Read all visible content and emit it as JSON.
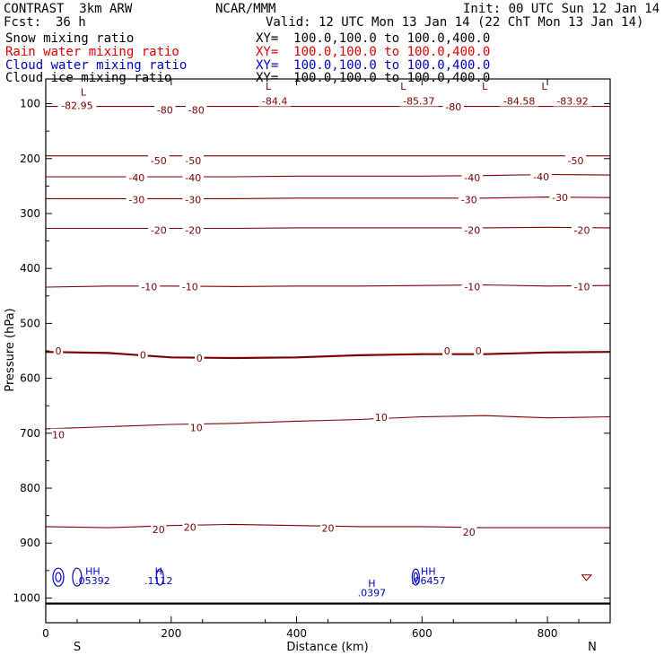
{
  "header": {
    "title": "CONTRAST  3km ARW",
    "center": "NCAR/MMM",
    "init": "Init: 00 UTC Sun 12 Jan 14",
    "fcst_label": "Fcst:",
    "fcst_value": "36 h",
    "valid": "Valid: 12 UTC Mon 13 Jan 14 (22 ChT Mon 13 Jan 14)"
  },
  "fields": [
    {
      "name": "Snow mixing ratio",
      "xy": "XY=  100.0,100.0 to 100.0,400.0",
      "color": "#000000"
    },
    {
      "name": "Rain water mixing ratio",
      "xy": "XY=  100.0,100.0 to 100.0,400.0",
      "color": "#e00000"
    },
    {
      "name": "Cloud water mixing ratio",
      "xy": "XY=  100.0,100.0 to 100.0,400.0",
      "color": "#0000c8"
    },
    {
      "name": "Cloud ice mixing ratio",
      "xy": "XY=  100.0,100.0 to 100.0,400.0",
      "color": "#000000"
    }
  ],
  "colors": {
    "temperature": "#7a0000",
    "cloud_water": "#0000c8",
    "rain": "#e00000",
    "frame": "#000000"
  },
  "chart_data": {
    "type": "contour",
    "xlabel": "Distance (km)",
    "ylabel": "Pressure (hPa)",
    "xlim": [
      0,
      900
    ],
    "ylim": [
      1045,
      55
    ],
    "xticks": [
      0,
      200,
      400,
      600,
      800
    ],
    "yticks": [
      100,
      200,
      300,
      400,
      500,
      600,
      700,
      800,
      900,
      1000
    ],
    "x_end_labels": {
      "left": "S",
      "right": "N"
    },
    "grid": false,
    "temperature_contours": [
      {
        "value": -80,
        "p": [
          105,
          105,
          105,
          105,
          105,
          105,
          105,
          105,
          105,
          105
        ]
      },
      {
        "value": -50,
        "p": [
          195,
          195,
          195,
          195,
          195,
          195,
          195,
          195,
          195,
          195
        ]
      },
      {
        "value": -40,
        "p": [
          233,
          233,
          233,
          233,
          232,
          232,
          232,
          231,
          229,
          230
        ]
      },
      {
        "value": -30,
        "p": [
          273,
          273,
          273,
          273,
          272,
          272,
          272,
          272,
          270,
          271
        ]
      },
      {
        "value": -20,
        "p": [
          327,
          327,
          327,
          327,
          326,
          326,
          326,
          326,
          325,
          326
        ]
      },
      {
        "value": -10,
        "p": [
          434,
          432,
          432,
          433,
          432,
          432,
          431,
          430,
          432,
          431
        ]
      },
      {
        "value": 0,
        "p": [
          552,
          554,
          562,
          563,
          562,
          558,
          556,
          556,
          553,
          552
        ]
      },
      {
        "value": 10,
        "p": [
          692,
          688,
          684,
          682,
          678,
          675,
          670,
          668,
          672,
          670
        ]
      },
      {
        "value": 20,
        "p": [
          870,
          872,
          868,
          866,
          868,
          870,
          870,
          872,
          872,
          872
        ]
      }
    ],
    "contour_labels": [
      {
        "text": "-82.95",
        "x": 50,
        "p": 103
      },
      {
        "text": "-80",
        "x": 190,
        "p": 111
      },
      {
        "text": "-80",
        "x": 240,
        "p": 111
      },
      {
        "text": "-84.4",
        "x": 365,
        "p": 95
      },
      {
        "text": "-85.37",
        "x": 595,
        "p": 95
      },
      {
        "text": "-80",
        "x": 650,
        "p": 106
      },
      {
        "text": "-84.58",
        "x": 755,
        "p": 95
      },
      {
        "text": "-83.92",
        "x": 840,
        "p": 95
      },
      {
        "text": "-50",
        "x": 180,
        "p": 204
      },
      {
        "text": "-50",
        "x": 235,
        "p": 204
      },
      {
        "text": "-50",
        "x": 845,
        "p": 204
      },
      {
        "text": "-40",
        "x": 145,
        "p": 235
      },
      {
        "text": "-40",
        "x": 235,
        "p": 235
      },
      {
        "text": "-40",
        "x": 680,
        "p": 235
      },
      {
        "text": "-40",
        "x": 790,
        "p": 233
      },
      {
        "text": "-30",
        "x": 145,
        "p": 275
      },
      {
        "text": "-30",
        "x": 235,
        "p": 275
      },
      {
        "text": "-30",
        "x": 675,
        "p": 275
      },
      {
        "text": "-30",
        "x": 820,
        "p": 271
      },
      {
        "text": "-20",
        "x": 180,
        "p": 330
      },
      {
        "text": "-20",
        "x": 235,
        "p": 330
      },
      {
        "text": "-20",
        "x": 680,
        "p": 330
      },
      {
        "text": "-20",
        "x": 855,
        "p": 330
      },
      {
        "text": "-10",
        "x": 165,
        "p": 433
      },
      {
        "text": "-10",
        "x": 230,
        "p": 433
      },
      {
        "text": "-10",
        "x": 680,
        "p": 433
      },
      {
        "text": "-10",
        "x": 855,
        "p": 433
      },
      {
        "text": "0",
        "x": 20,
        "p": 550
      },
      {
        "text": "0",
        "x": 155,
        "p": 557
      },
      {
        "text": "0",
        "x": 245,
        "p": 563
      },
      {
        "text": "0",
        "x": 640,
        "p": 550
      },
      {
        "text": "0",
        "x": 690,
        "p": 550
      },
      {
        "text": "10",
        "x": 20,
        "p": 703
      },
      {
        "text": "10",
        "x": 240,
        "p": 690
      },
      {
        "text": "10",
        "x": 535,
        "p": 671
      },
      {
        "text": "20",
        "x": 180,
        "p": 875
      },
      {
        "text": "20",
        "x": 230,
        "p": 871
      },
      {
        "text": "20",
        "x": 450,
        "p": 873
      },
      {
        "text": "20",
        "x": 675,
        "p": 880
      }
    ],
    "extrema_labels": [
      {
        "text": "L",
        "x": 60,
        "p": 85,
        "color": "#7a0000"
      },
      {
        "text": "L",
        "x": 355,
        "p": 75,
        "color": "#7a0000"
      },
      {
        "text": "L",
        "x": 570,
        "p": 75,
        "color": "#7a0000"
      },
      {
        "text": "L",
        "x": 700,
        "p": 75,
        "color": "#7a0000"
      },
      {
        "text": "L",
        "x": 795,
        "p": 75,
        "color": "#7a0000"
      },
      {
        "text": "HH",
        "x": 75,
        "p": 958,
        "color": "#0000c8"
      },
      {
        "text": ".05392",
        "x": 75,
        "p": 975,
        "color": "#0000c8"
      },
      {
        "text": "H",
        "x": 180,
        "p": 958,
        "color": "#0000c8"
      },
      {
        "text": ".1112",
        "x": 180,
        "p": 975,
        "color": "#0000c8"
      },
      {
        "text": "H",
        "x": 520,
        "p": 980,
        "color": "#0000c8"
      },
      {
        "text": ".0397",
        "x": 520,
        "p": 997,
        "color": "#0000c8"
      },
      {
        "text": "HH",
        "x": 610,
        "p": 958,
        "color": "#0000c8"
      },
      {
        "text": ".06457",
        "x": 610,
        "p": 975,
        "color": "#0000c8"
      }
    ],
    "ground_pressure": [
      1010,
      1010,
      1010,
      1010,
      1010,
      1010,
      1010,
      1010,
      1010,
      1010
    ]
  }
}
